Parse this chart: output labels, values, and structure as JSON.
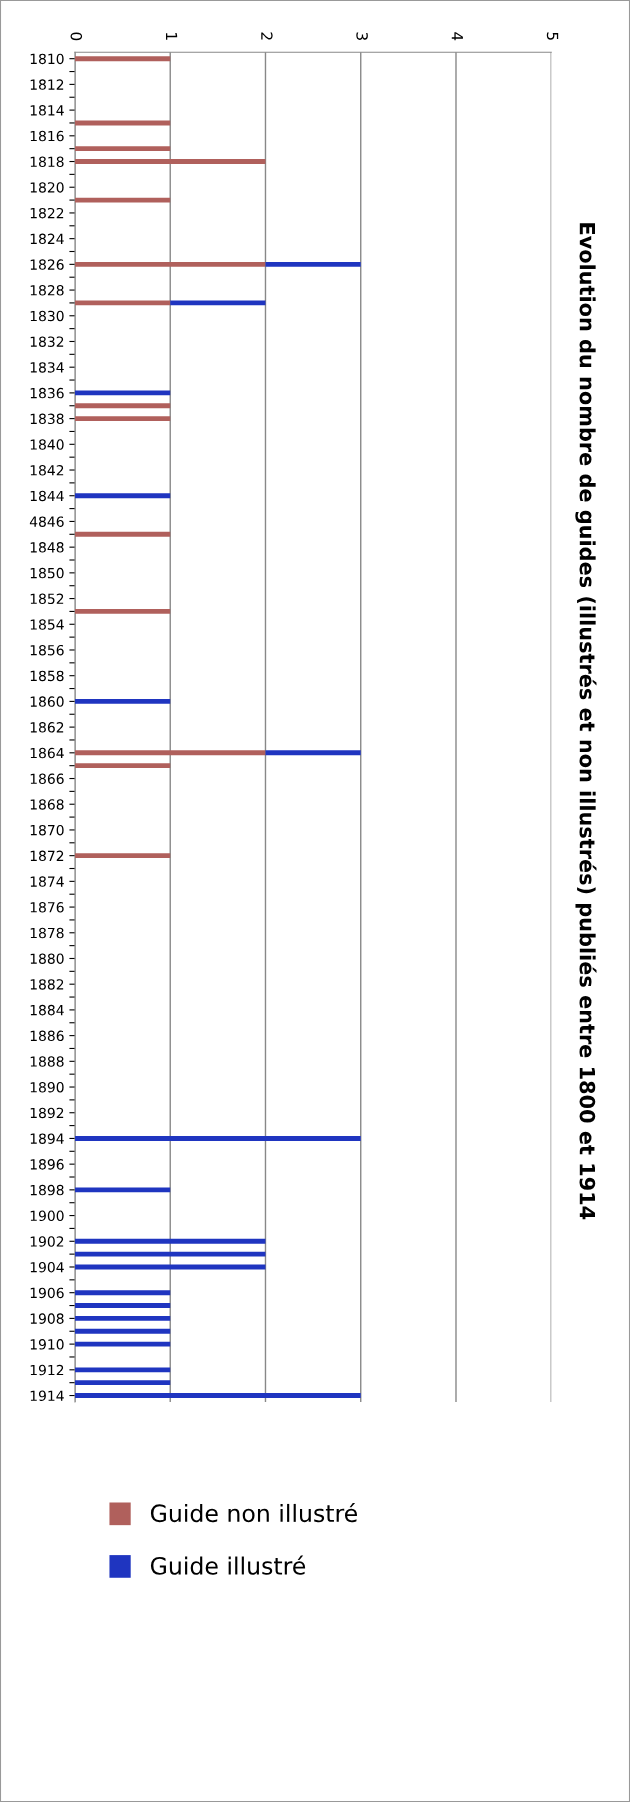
{
  "chart_data": {
    "type": "bar",
    "orientation": "horizontal",
    "stacked": true,
    "title": "Evolution du nombre de guides (illustrés et non illustrés) publiés entre 1800 et 1914",
    "categories": [
      "1810",
      null,
      "1812",
      null,
      "1814",
      null,
      "1816",
      null,
      "1818",
      null,
      "1820",
      null,
      "1822",
      null,
      "1824",
      null,
      "1826",
      null,
      "1828",
      null,
      "1830",
      null,
      "1832",
      null,
      "1834",
      null,
      "1836",
      null,
      "1838",
      null,
      "1840",
      null,
      "1842",
      null,
      "1844",
      null,
      "4846",
      null,
      "1848",
      null,
      "1850",
      null,
      "1852",
      null,
      "1854",
      null,
      "1856",
      null,
      "1858",
      null,
      "1860",
      null,
      "1862",
      null,
      "1864",
      null,
      "1866",
      null,
      "1868",
      null,
      "1870",
      null,
      "1872",
      null,
      "1874",
      null,
      "1876",
      null,
      "1878",
      null,
      "1880",
      null,
      "1882",
      null,
      "1884",
      null,
      "1886",
      null,
      "1888",
      null,
      "1890",
      null,
      "1892",
      null,
      "1894",
      null,
      "1896",
      null,
      "1898",
      null,
      "1900",
      null,
      "1902",
      null,
      "1904",
      null,
      "1906",
      null,
      "1908",
      null,
      "1910",
      null,
      "1912",
      null,
      "1914"
    ],
    "series": [
      {
        "name": "Guide non illustré",
        "color": "#b0605c",
        "values": [
          1,
          0,
          0,
          0,
          0,
          1,
          0,
          1,
          2,
          0,
          0,
          1,
          0,
          0,
          0,
          0,
          2,
          0,
          0,
          1,
          0,
          0,
          0,
          0,
          0,
          0,
          0,
          1,
          1,
          0,
          0,
          0,
          0,
          0,
          0,
          0,
          0,
          1,
          0,
          0,
          0,
          0,
          0,
          1,
          0,
          0,
          0,
          0,
          0,
          0,
          0,
          0,
          0,
          0,
          2,
          1,
          0,
          0,
          0,
          0,
          0,
          0,
          1,
          0,
          0,
          0,
          0,
          0,
          0,
          0,
          0,
          0,
          0,
          0,
          0,
          0,
          0,
          0,
          0,
          0,
          0,
          0,
          0,
          0,
          0,
          0,
          0,
          0,
          0,
          0,
          0,
          0,
          0,
          0,
          0,
          0,
          0,
          0,
          0,
          0,
          0,
          0,
          0,
          0,
          0
        ]
      },
      {
        "name": "Guide illustré",
        "color": "#1f35c0",
        "values": [
          0,
          0,
          0,
          0,
          0,
          0,
          0,
          0,
          0,
          0,
          0,
          0,
          0,
          0,
          0,
          0,
          1,
          0,
          0,
          1,
          0,
          0,
          0,
          0,
          0,
          0,
          1,
          0,
          0,
          0,
          0,
          0,
          0,
          0,
          1,
          0,
          0,
          0,
          0,
          0,
          0,
          0,
          0,
          0,
          0,
          0,
          0,
          0,
          0,
          0,
          1,
          0,
          0,
          0,
          1,
          0,
          0,
          0,
          0,
          0,
          0,
          0,
          0,
          0,
          0,
          0,
          0,
          0,
          0,
          0,
          0,
          0,
          0,
          0,
          0,
          0,
          0,
          0,
          0,
          0,
          0,
          0,
          0,
          0,
          3,
          0,
          0,
          0,
          1,
          0,
          0,
          0,
          2,
          2,
          2,
          0,
          1,
          1,
          1,
          1,
          1,
          0,
          1,
          1,
          3
        ]
      }
    ],
    "xlim": [
      0,
      5
    ],
    "xticks": [
      0,
      1,
      2,
      3,
      4,
      5
    ],
    "grid": "x",
    "legend": "bottom"
  }
}
